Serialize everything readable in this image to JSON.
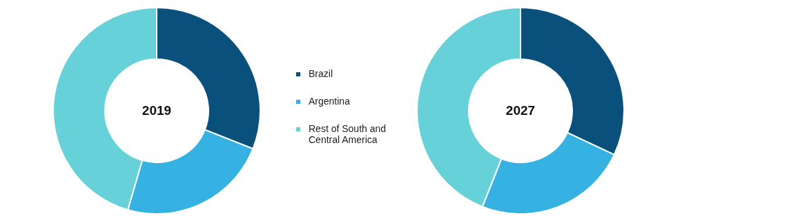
{
  "chart_data": [
    {
      "type": "donut",
      "title": "2019",
      "categories": [
        "Brazil",
        "Argentina",
        "Rest of South and Central America"
      ],
      "values": [
        31,
        23.5,
        45.5
      ],
      "colors": [
        "#0a507d",
        "#35b1e2",
        "#66d1d9"
      ],
      "legend": "right"
    },
    {
      "type": "donut",
      "title": "2027",
      "categories": [
        null,
        null,
        null
      ],
      "values": [
        32,
        24,
        44
      ],
      "colors": [
        "#0a507d",
        "#35b1e2",
        "#66d1d9"
      ],
      "legend": false
    }
  ]
}
